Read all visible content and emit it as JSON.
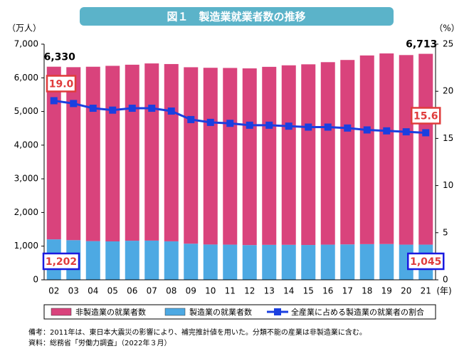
{
  "chart_data": {
    "type": "bar-line",
    "title": "図１　製造業就業者数の推移",
    "y_label": "（万人）",
    "y2_label": "（%）",
    "x_label": "(年)",
    "categories": [
      "02",
      "03",
      "04",
      "05",
      "06",
      "07",
      "08",
      "09",
      "10",
      "11",
      "12",
      "13",
      "14",
      "15",
      "16",
      "17",
      "18",
      "19",
      "20",
      "21"
    ],
    "series": [
      {
        "name": "非製造業の就業者数",
        "color": "#d9437c",
        "stacked": true,
        "values": [
          5128,
          5138,
          5179,
          5214,
          5228,
          5262,
          5265,
          5241,
          5249,
          5248,
          5248,
          5287,
          5331,
          5366,
          5420,
          5478,
          5604,
          5661,
          5631,
          5668
        ]
      },
      {
        "name": "製造業の就業者数",
        "color": "#4da9e3",
        "stacked": true,
        "values": [
          1202,
          1178,
          1150,
          1142,
          1161,
          1165,
          1144,
          1073,
          1049,
          1045,
          1032,
          1039,
          1040,
          1035,
          1045,
          1052,
          1060,
          1063,
          1045,
          1045
        ],
        "value_labels": [
          "1,202",
          null,
          null,
          null,
          null,
          null,
          null,
          null,
          null,
          null,
          null,
          null,
          null,
          null,
          null,
          null,
          null,
          null,
          null,
          "1,045"
        ]
      },
      {
        "name": "全産業に占める製造業の就業者の割合",
        "color": "#1a3fe0",
        "type": "line",
        "axis": "y2",
        "values": [
          19.0,
          18.7,
          18.2,
          18.0,
          18.2,
          18.2,
          17.9,
          17.0,
          16.7,
          16.6,
          16.4,
          16.4,
          16.3,
          16.2,
          16.2,
          16.1,
          15.9,
          15.8,
          15.7,
          15.6
        ],
        "value_labels": [
          "19.0",
          null,
          null,
          null,
          null,
          null,
          null,
          null,
          null,
          null,
          null,
          null,
          null,
          null,
          null,
          null,
          null,
          null,
          null,
          "15.6"
        ]
      }
    ],
    "total_labels": [
      {
        "index": 0,
        "value": 6330,
        "label": "6,330"
      },
      {
        "index": 19,
        "value": 6713,
        "label": "6,713"
      }
    ],
    "ylim": [
      0,
      7000
    ],
    "yticks": [
      0,
      {
        "value": 1000,
        "label": "1,000"
      },
      {
        "value": 2000,
        "label": "2,000"
      },
      {
        "value": 3000,
        "label": "3,000"
      },
      {
        "value": 4000,
        "label": "4,000"
      },
      {
        "value": 5000,
        "label": "5,000"
      },
      {
        "value": 6000,
        "label": "6,000"
      },
      {
        "value": 7000,
        "label": "7,000"
      }
    ],
    "y2lim": [
      0,
      25
    ],
    "y2ticks": [
      0,
      5,
      10,
      15,
      20,
      25
    ],
    "legend": "bottom",
    "notes": [
      "備考：2011年は、東日本大震災の影響により、補完推計値を用いた。分類不能の産業は非製造業に含む。",
      "資料：総務省「労働力調査」（2022年３月）"
    ]
  }
}
